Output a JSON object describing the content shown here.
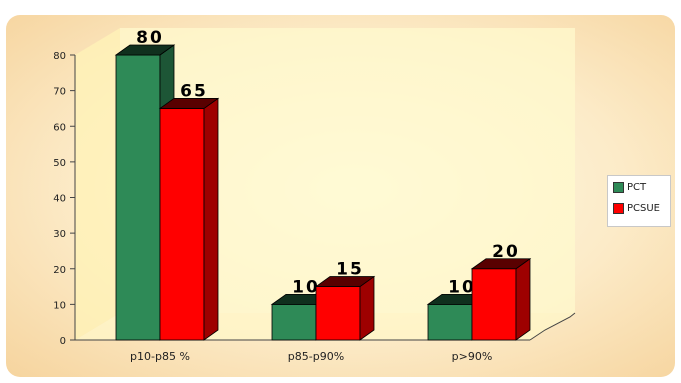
{
  "chart_data": {
    "type": "bar",
    "title": "",
    "xlabel": "",
    "ylabel": "",
    "ylim": [
      0,
      80
    ],
    "yticks": [
      0,
      10,
      20,
      30,
      40,
      50,
      60,
      70,
      80
    ],
    "categories": [
      "p10-p85 %",
      "p85-p90%",
      "p>90%"
    ],
    "series": [
      {
        "name": "PCT",
        "values": [
          80,
          10,
          10
        ],
        "color": "#2e8a57"
      },
      {
        "name": "PCSUE",
        "values": [
          65,
          15,
          20
        ],
        "color": "#ff0000"
      }
    ],
    "legend_position": "right",
    "style": "3d-clustered-column",
    "frame_colors": {
      "background": "#fde9c4",
      "wall": "#fffacd"
    }
  }
}
